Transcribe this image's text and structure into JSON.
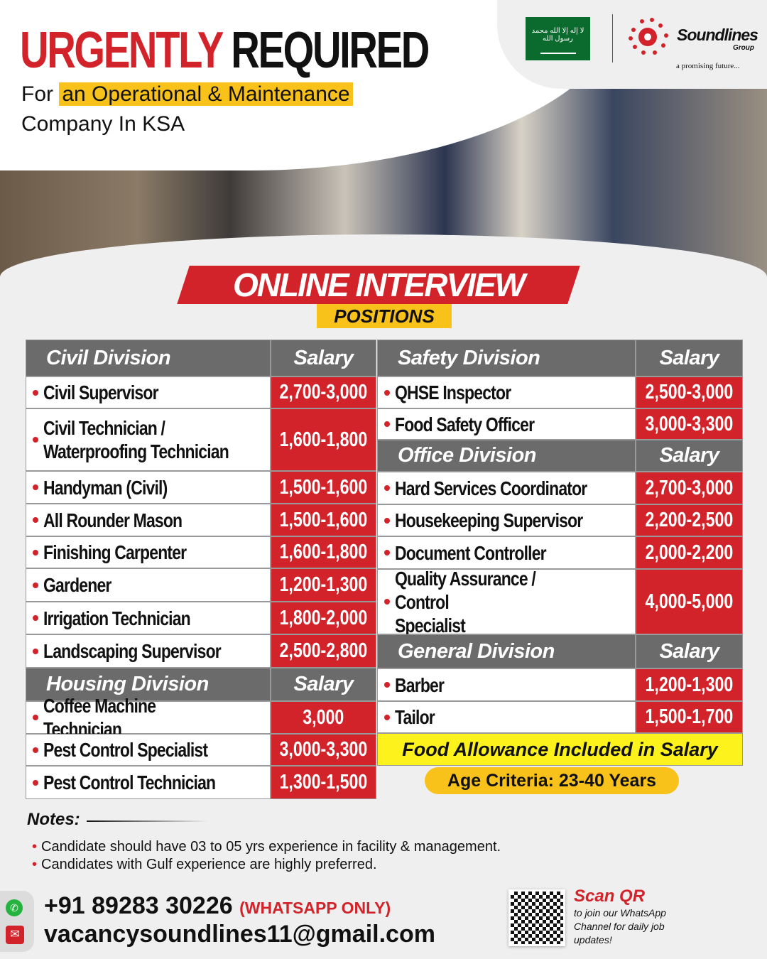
{
  "header": {
    "title_red": "URGENTLY",
    "title_black": "REQUIRED",
    "for": "For",
    "highlight": "an Operational & Maintenance",
    "line2": "Company In KSA"
  },
  "logo": {
    "flag_text": "لا إله إلا الله محمد رسول الله",
    "brand": "Soundlines",
    "brand_sub": "Group",
    "tagline": "a promising future..."
  },
  "banner": {
    "online": "ONLINE INTERVIEW",
    "positions": "POSITIONS"
  },
  "colors": {
    "red": "#d3232a",
    "yellow": "#f9c21a",
    "header_grey": "#6b6b6b",
    "green": "#0b6b2f"
  },
  "salary_label": "Salary",
  "left": [
    {
      "type": "header",
      "label": "Civil Division"
    },
    {
      "name": "Civil Supervisor",
      "salary": "2,700-3,000"
    },
    {
      "name": "Civil Technician /\nWaterproofing Technician",
      "salary": "1,600-1,800"
    },
    {
      "name": "Handyman (Civil)",
      "salary": "1,500-1,600"
    },
    {
      "name": "All Rounder Mason",
      "salary": "1,500-1,600"
    },
    {
      "name": "Finishing Carpenter",
      "salary": "1,600-1,800"
    },
    {
      "name": "Gardener",
      "salary": "1,200-1,300"
    },
    {
      "name": "Irrigation Technician",
      "salary": "1,800-2,000"
    },
    {
      "name": "Landscaping Supervisor",
      "salary": "2,500-2,800"
    },
    {
      "type": "header",
      "label": "Housing Division"
    },
    {
      "name": "Coffee Machine Technician",
      "salary": "3,000"
    },
    {
      "name": "Pest Control Specialist",
      "salary": "3,000-3,300"
    },
    {
      "name": "Pest Control Technician",
      "salary": "1,300-1,500"
    }
  ],
  "right": [
    {
      "type": "header",
      "label": "Safety Division"
    },
    {
      "name": "QHSE Inspector",
      "salary": "2,500-3,000"
    },
    {
      "name": "Food Safety Officer",
      "salary": "3,000-3,300"
    },
    {
      "type": "header",
      "label": "Office Division"
    },
    {
      "name": "Hard Services Coordinator",
      "salary": "2,700-3,000"
    },
    {
      "name": "Housekeeping Supervisor",
      "salary": "2,200-2,500"
    },
    {
      "name": "Document Controller",
      "salary": "2,000-2,200"
    },
    {
      "name": "Quality Assurance / Control\nSpecialist",
      "salary": "4,000-5,000"
    },
    {
      "type": "header",
      "label": "General Division"
    },
    {
      "name": "Barber",
      "salary": "1,200-1,300"
    },
    {
      "name": "Tailor",
      "salary": "1,500-1,700"
    }
  ],
  "food_allowance": "Food Allowance Included in Salary",
  "age": "Age Criteria: 23-40 Years",
  "notes": {
    "label": "Notes:",
    "items": [
      "Candidate should have 03 to 05 yrs experience in facility & management.",
      "Candidates with Gulf experience are highly preferred."
    ]
  },
  "contact": {
    "phone": "+91 89283 30226",
    "phone_note": "(WHATSAPP ONLY)",
    "email": "vacancysoundlines11@gmail.com",
    "whatsapp_icon": "whatsapp-icon",
    "mail_icon": "mail-icon"
  },
  "qr": {
    "title": "Scan QR",
    "text": "to join our WhatsApp Channel for daily job updates!"
  }
}
